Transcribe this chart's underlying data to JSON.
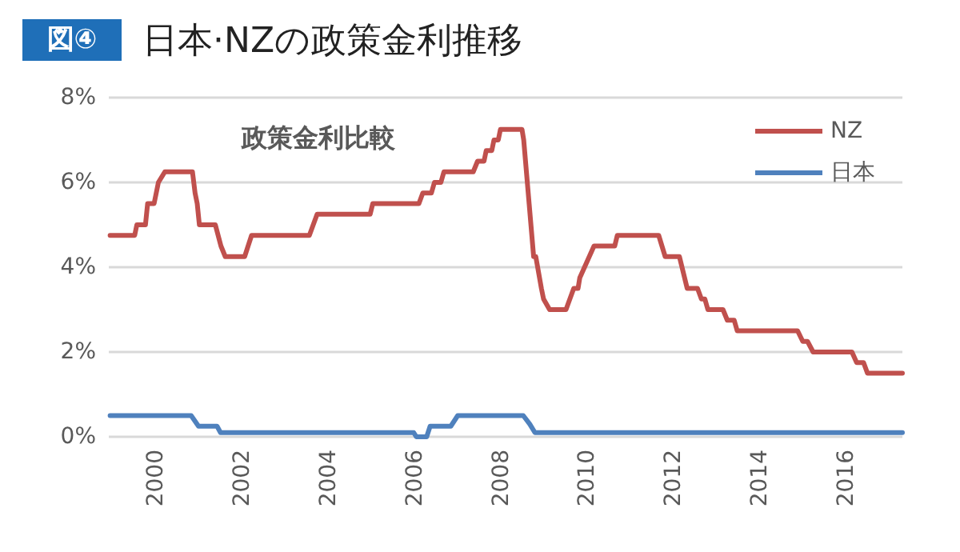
{
  "chart_data": {
    "type": "line",
    "title": "日本·NZの政策金利推移",
    "annotations": [
      "図④",
      "政策金利比較"
    ],
    "series": [
      {
        "name": "NZ",
        "color": "#c0504d",
        "x": [
          1998.93,
          1999.5,
          1999.55,
          1999.75,
          1999.8,
          1999.95,
          2000.05,
          2000.2,
          2000.84,
          2000.9,
          2000.95,
          2001.0,
          2001.37,
          2001.5,
          2001.6,
          2002.05,
          2002.21,
          2003.55,
          2003.73,
          2004.96,
          2005.02,
          2006.09,
          2006.18,
          2006.38,
          2006.45,
          2006.6,
          2006.67,
          2007.35,
          2007.45,
          2007.6,
          2007.65,
          2007.78,
          2007.83,
          2007.93,
          2007.98,
          2008.48,
          2008.52,
          2008.75,
          2008.8,
          2008.93,
          2008.98,
          2009.12,
          2009.5,
          2009.68,
          2009.78,
          2009.82,
          2010.15,
          2010.63,
          2010.69,
          2011.65,
          2011.8,
          2012.13,
          2012.31,
          2012.55,
          2012.64,
          2012.72,
          2012.79,
          2013.14,
          2013.24,
          2013.4,
          2013.47,
          2014.87,
          2014.99,
          2015.1,
          2015.23,
          2016.13,
          2016.24,
          2016.4,
          2016.49,
          2017.3
        ],
        "values": [
          4.75,
          4.75,
          5.0,
          5.0,
          5.5,
          5.5,
          6.0,
          6.25,
          6.25,
          5.75,
          5.5,
          5.0,
          5.0,
          4.5,
          4.25,
          4.25,
          4.75,
          4.75,
          5.25,
          5.25,
          5.5,
          5.5,
          5.75,
          5.75,
          6.0,
          6.0,
          6.25,
          6.25,
          6.5,
          6.5,
          6.75,
          6.75,
          7.0,
          7.0,
          7.25,
          7.25,
          7.0,
          4.25,
          4.25,
          3.5,
          3.25,
          3.0,
          3.0,
          3.5,
          3.5,
          3.75,
          4.5,
          4.5,
          4.75,
          4.75,
          4.25,
          4.25,
          3.5,
          3.5,
          3.25,
          3.25,
          3.0,
          3.0,
          2.75,
          2.75,
          2.5,
          2.5,
          2.25,
          2.25,
          2.0,
          2.0,
          1.75,
          1.75,
          1.5,
          1.5
        ]
      },
      {
        "name": "日本",
        "color": "#4f81bd",
        "x": [
          1998.93,
          2000.81,
          2000.98,
          2001.41,
          2001.49,
          2005.97,
          2006.03,
          2006.27,
          2006.35,
          2006.83,
          2006.99,
          2008.51,
          2008.66,
          2008.78,
          2017.3
        ],
        "values": [
          0.5,
          0.5,
          0.25,
          0.25,
          0.1,
          0.1,
          0,
          0,
          0.25,
          0.25,
          0.5,
          0.5,
          0.3,
          0.1,
          0.1
        ]
      }
    ],
    "xlim": [
      1998.9,
      2017.3
    ],
    "xticks": [
      2000,
      2002,
      2004,
      2006,
      2008,
      2010,
      2012,
      2014,
      2016
    ],
    "ylim": [
      0,
      8
    ],
    "yticks": [
      {
        "value": 0,
        "label": "0%"
      },
      {
        "value": 2,
        "label": "2%"
      },
      {
        "value": 4,
        "label": "4%"
      },
      {
        "value": 6,
        "label": "6%"
      },
      {
        "value": 8,
        "label": "8%"
      }
    ],
    "grid": "y",
    "legend": "top right",
    "marker": "none",
    "line_style": "solid"
  }
}
